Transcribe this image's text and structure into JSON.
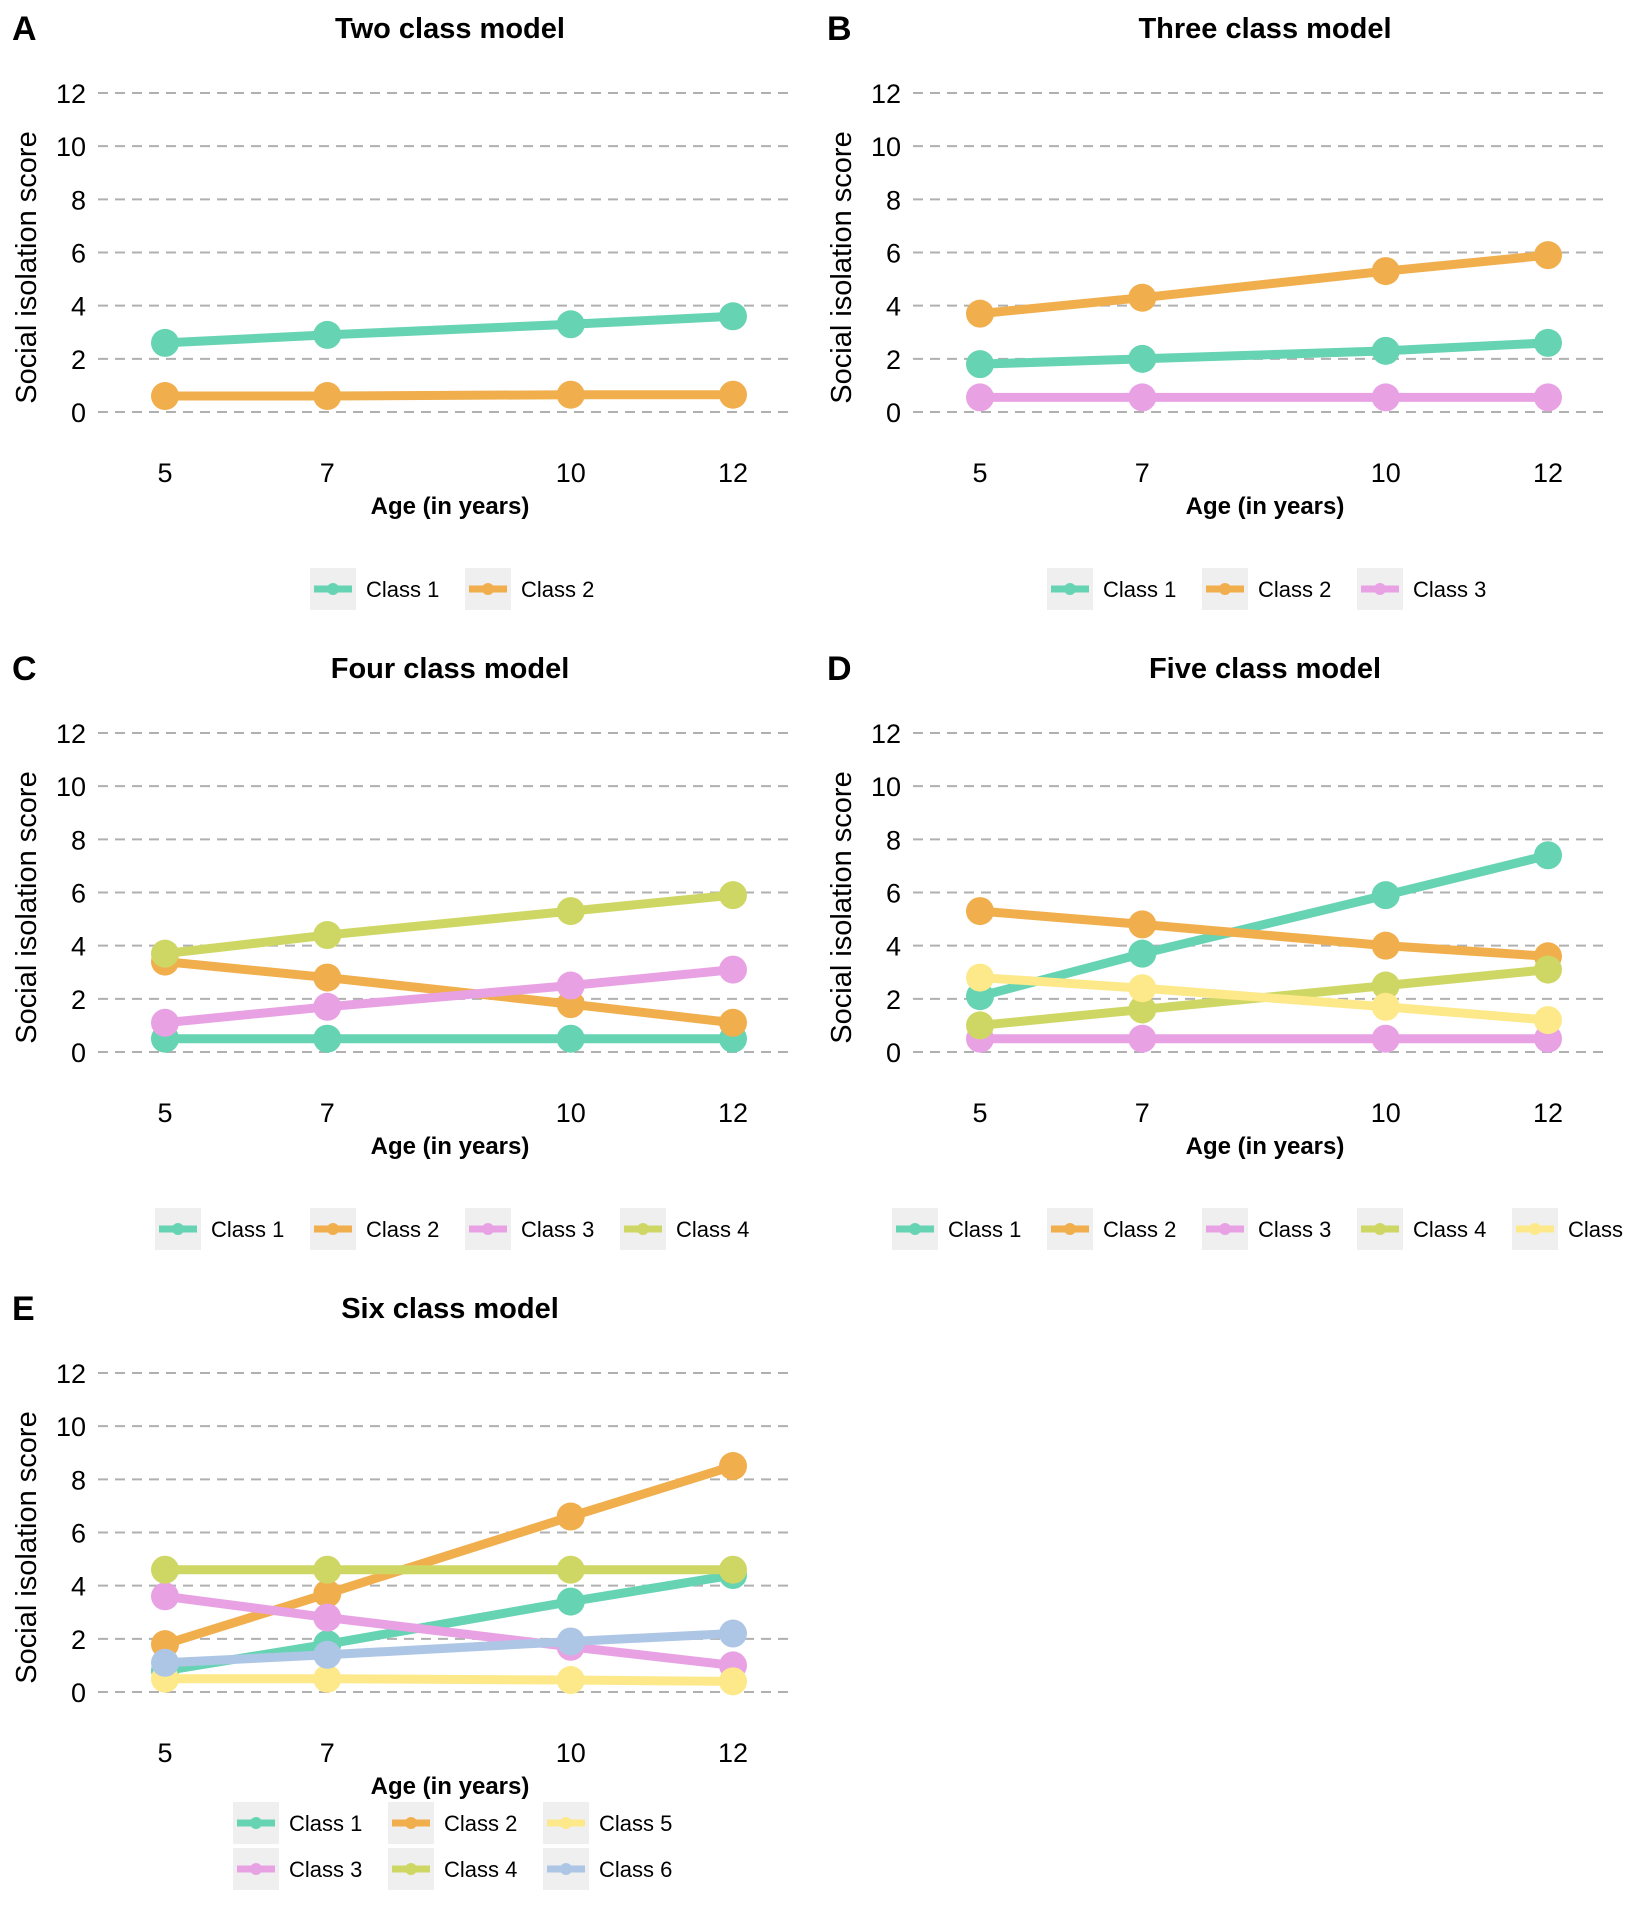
{
  "chart_data": [
    {
      "type": "line",
      "panel": "A",
      "title": "Two class model",
      "xlabel": "Age (in years)",
      "ylabel": "Social isolation score",
      "x": [
        5,
        7,
        10,
        12
      ],
      "ylim": [
        0,
        12
      ],
      "yticks": [
        0,
        2,
        4,
        6,
        8,
        10,
        12
      ],
      "grid": "horizontal-dashed",
      "legend_position": "bottom",
      "series": [
        {
          "name": "Class 1",
          "color": "#66d3b3",
          "values": [
            2.6,
            2.9,
            3.3,
            3.6
          ]
        },
        {
          "name": "Class 2",
          "color": "#f1ae4c",
          "values": [
            0.6,
            0.6,
            0.65,
            0.65
          ]
        }
      ]
    },
    {
      "type": "line",
      "panel": "B",
      "title": "Three class model",
      "xlabel": "Age (in years)",
      "ylabel": "Social isolation score",
      "x": [
        5,
        7,
        10,
        12
      ],
      "ylim": [
        0,
        12
      ],
      "yticks": [
        0,
        2,
        4,
        6,
        8,
        10,
        12
      ],
      "grid": "horizontal-dashed",
      "legend_position": "bottom",
      "series": [
        {
          "name": "Class 1",
          "color": "#66d3b3",
          "values": [
            1.8,
            2.0,
            2.3,
            2.6
          ]
        },
        {
          "name": "Class 2",
          "color": "#f1ae4c",
          "values": [
            3.7,
            4.3,
            5.3,
            5.9
          ]
        },
        {
          "name": "Class 3",
          "color": "#e8a2e4",
          "values": [
            0.55,
            0.55,
            0.55,
            0.55
          ]
        }
      ]
    },
    {
      "type": "line",
      "panel": "C",
      "title": "Four class model",
      "xlabel": "Age (in years)",
      "ylabel": "Social isolation score",
      "x": [
        5,
        7,
        10,
        12
      ],
      "ylim": [
        0,
        12
      ],
      "yticks": [
        0,
        2,
        4,
        6,
        8,
        10,
        12
      ],
      "grid": "horizontal-dashed",
      "legend_position": "bottom",
      "series": [
        {
          "name": "Class 1",
          "color": "#66d3b3",
          "values": [
            0.5,
            0.5,
            0.5,
            0.5
          ]
        },
        {
          "name": "Class 2",
          "color": "#f1ae4c",
          "values": [
            3.4,
            2.8,
            1.8,
            1.1
          ]
        },
        {
          "name": "Class 3",
          "color": "#e8a2e4",
          "values": [
            1.1,
            1.7,
            2.5,
            3.1
          ]
        },
        {
          "name": "Class 4",
          "color": "#cfd764",
          "values": [
            3.7,
            4.4,
            5.3,
            5.9
          ]
        }
      ]
    },
    {
      "type": "line",
      "panel": "D",
      "title": "Five class model",
      "xlabel": "Age (in years)",
      "ylabel": "Social isolation score",
      "x": [
        5,
        7,
        10,
        12
      ],
      "ylim": [
        0,
        12
      ],
      "yticks": [
        0,
        2,
        4,
        6,
        8,
        10,
        12
      ],
      "grid": "horizontal-dashed",
      "legend_position": "bottom",
      "series": [
        {
          "name": "Class 1",
          "color": "#66d3b3",
          "values": [
            2.1,
            3.7,
            5.9,
            7.4
          ]
        },
        {
          "name": "Class 2",
          "color": "#f1ae4c",
          "values": [
            5.3,
            4.8,
            4.0,
            3.6
          ]
        },
        {
          "name": "Class 3",
          "color": "#e8a2e4",
          "values": [
            0.5,
            0.5,
            0.5,
            0.5
          ]
        },
        {
          "name": "Class 4",
          "color": "#cfd764",
          "values": [
            1.0,
            1.6,
            2.5,
            3.1
          ]
        },
        {
          "name": "Class",
          "color": "#fde98a",
          "values": [
            2.8,
            2.4,
            1.7,
            1.2
          ]
        }
      ]
    },
    {
      "type": "line",
      "panel": "E",
      "title": "Six class model",
      "xlabel": "Age (in years)",
      "ylabel": "Social isolation score",
      "x": [
        5,
        7,
        10,
        12
      ],
      "ylim": [
        0,
        12
      ],
      "yticks": [
        0,
        2,
        4,
        6,
        8,
        10,
        12
      ],
      "grid": "horizontal-dashed",
      "legend_position": "bottom",
      "series": [
        {
          "name": "Class 1",
          "color": "#66d3b3",
          "values": [
            0.8,
            1.8,
            3.4,
            4.4
          ]
        },
        {
          "name": "Class 2",
          "color": "#f1ae4c",
          "values": [
            1.8,
            3.7,
            6.6,
            8.5
          ]
        },
        {
          "name": "Class 3",
          "color": "#e8a2e4",
          "values": [
            3.6,
            2.8,
            1.7,
            1.0
          ]
        },
        {
          "name": "Class 4",
          "color": "#cfd764",
          "values": [
            4.6,
            4.6,
            4.6,
            4.6
          ]
        },
        {
          "name": "Class 5",
          "color": "#fde98a",
          "values": [
            0.5,
            0.5,
            0.45,
            0.4
          ]
        },
        {
          "name": "Class 6",
          "color": "#aec6e6",
          "values": [
            1.1,
            1.4,
            1.9,
            2.2
          ]
        }
      ]
    }
  ]
}
